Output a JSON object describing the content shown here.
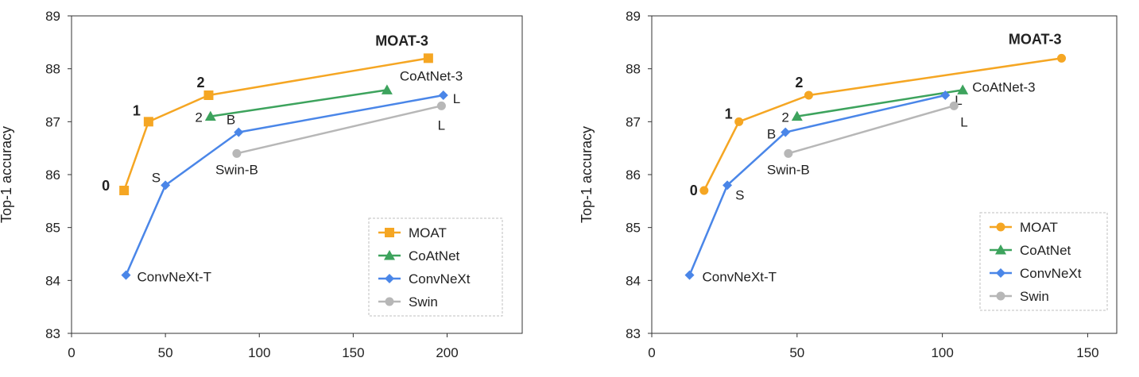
{
  "chart_data": [
    {
      "type": "line",
      "title": "",
      "xlabel": "",
      "ylabel": "Top-1 accuracy",
      "xlim": [
        0,
        240
      ],
      "ylim": [
        83,
        89
      ],
      "xticks": [
        0,
        50,
        100,
        150,
        200
      ],
      "yticks": [
        83,
        84,
        85,
        86,
        87,
        88,
        89
      ],
      "legend_position": "bottom-right",
      "series": [
        {
          "name": "MOAT",
          "color": "#F5A623",
          "marker": "square",
          "x": [
            28,
            41,
            73,
            190
          ],
          "y": [
            85.7,
            87.0,
            87.5,
            88.2
          ],
          "labels": [
            "0",
            "1",
            "2",
            "MOAT-3"
          ]
        },
        {
          "name": "CoAtNet",
          "color": "#3DA35D",
          "marker": "triangle",
          "x": [
            74,
            168
          ],
          "y": [
            87.1,
            87.6
          ],
          "labels": [
            "2",
            "CoAtNet-3"
          ]
        },
        {
          "name": "ConvNeXt",
          "color": "#4A86E8",
          "marker": "diamond",
          "x": [
            29,
            50,
            89,
            198
          ],
          "y": [
            84.1,
            85.8,
            86.8,
            87.5
          ],
          "labels": [
            "ConvNeXt-T",
            "S",
            "B",
            "L"
          ]
        },
        {
          "name": "Swin",
          "color": "#B7B7B7",
          "marker": "circle",
          "x": [
            88,
            197
          ],
          "y": [
            86.4,
            87.3
          ],
          "labels": [
            "Swin-B",
            "L"
          ]
        }
      ]
    },
    {
      "type": "line",
      "title": "",
      "xlabel": "",
      "ylabel": "Top-1 accuracy",
      "xlim": [
        0,
        160
      ],
      "ylim": [
        83,
        89
      ],
      "xticks": [
        0,
        50,
        100,
        150
      ],
      "yticks": [
        83,
        84,
        85,
        86,
        87,
        88,
        89
      ],
      "legend_position": "bottom-right",
      "series": [
        {
          "name": "MOAT",
          "color": "#F5A623",
          "marker": "circle",
          "x": [
            18,
            30,
            54,
            141
          ],
          "y": [
            85.7,
            87.0,
            87.5,
            88.2
          ],
          "labels": [
            "0",
            "1",
            "2",
            "MOAT-3"
          ]
        },
        {
          "name": "CoAtNet",
          "color": "#3DA35D",
          "marker": "triangle",
          "x": [
            50,
            107
          ],
          "y": [
            87.1,
            87.6
          ],
          "labels": [
            "2",
            "CoAtNet-3"
          ]
        },
        {
          "name": "ConvNeXt",
          "color": "#4A86E8",
          "marker": "diamond",
          "x": [
            13,
            26,
            46,
            101
          ],
          "y": [
            84.1,
            85.8,
            86.8,
            87.5
          ],
          "labels": [
            "ConvNeXt-T",
            "S",
            "B",
            "L"
          ]
        },
        {
          "name": "Swin",
          "color": "#B7B7B7",
          "marker": "circle",
          "x": [
            47,
            104
          ],
          "y": [
            86.4,
            87.3
          ],
          "labels": [
            "Swin-B",
            "L"
          ]
        }
      ]
    }
  ]
}
